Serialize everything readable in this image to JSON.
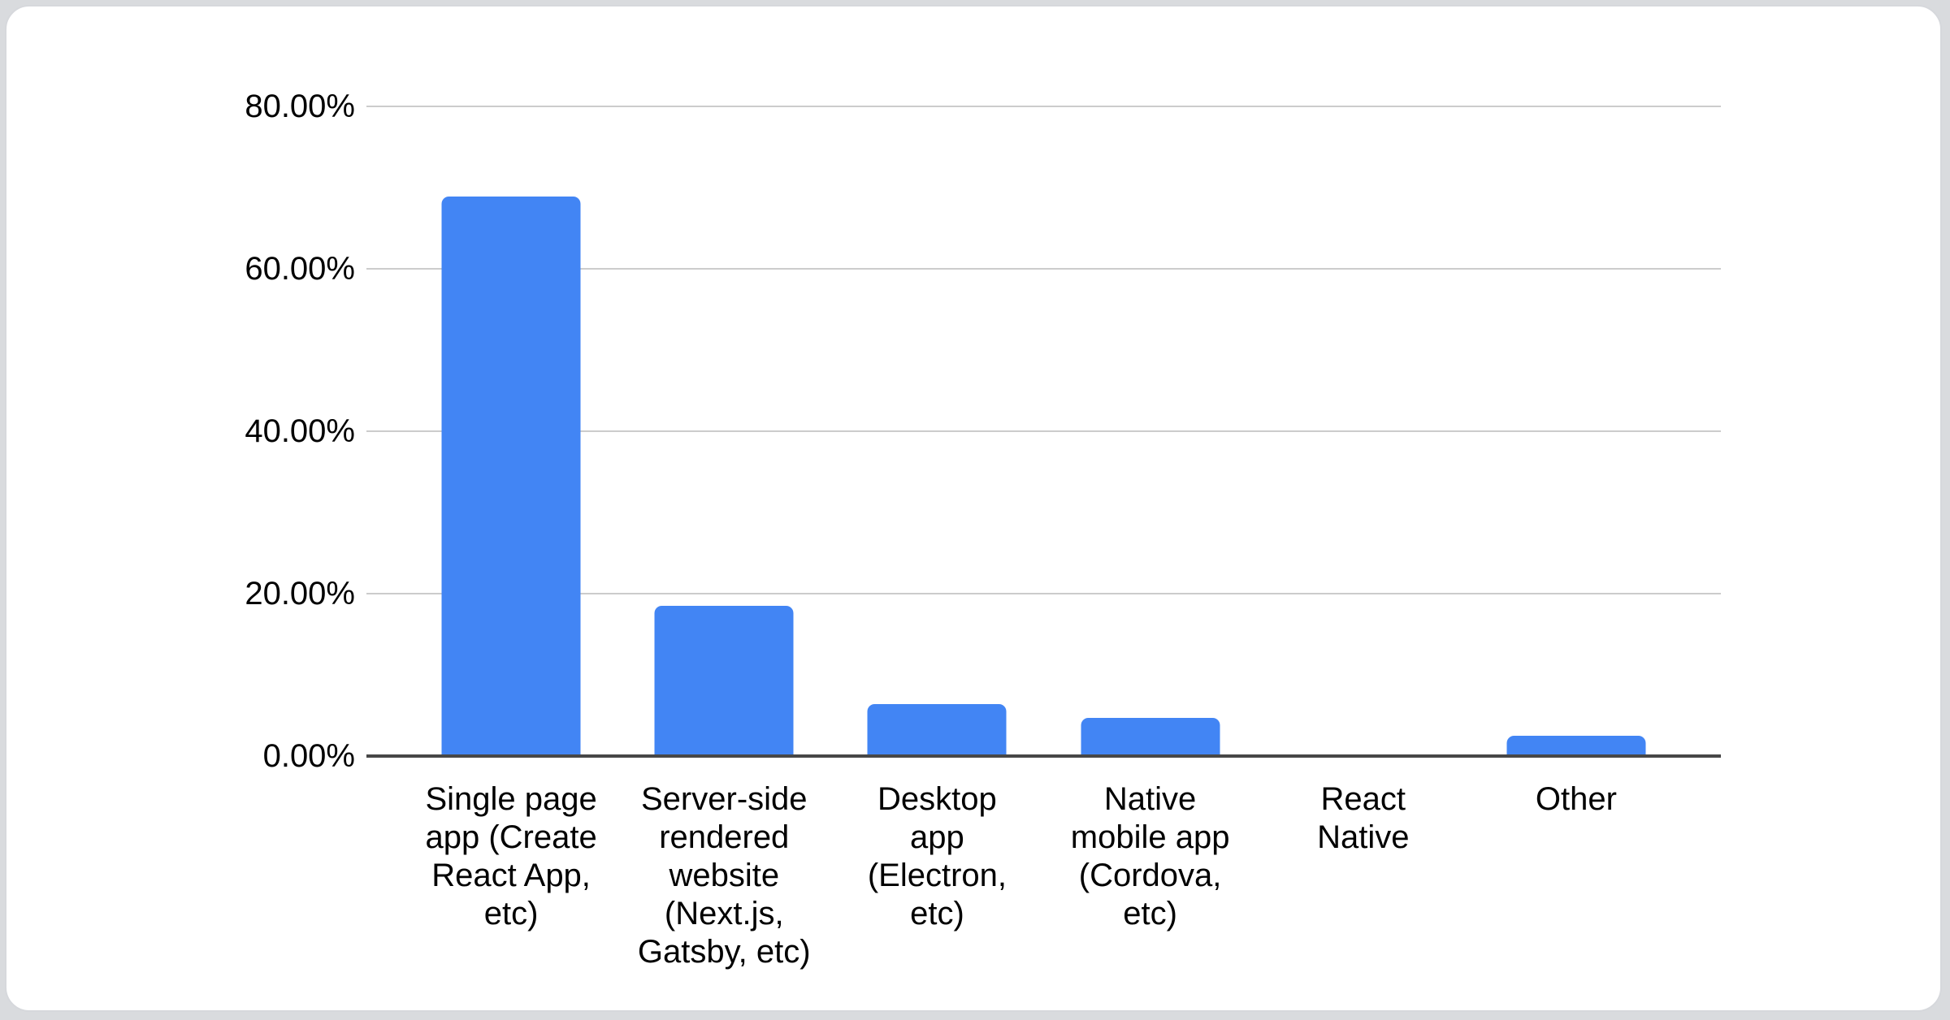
{
  "chart_data": {
    "type": "bar",
    "title": "",
    "xlabel": "",
    "ylabel": "",
    "categories": [
      "Single page app (Create React App, etc)",
      "Server-side rendered website (Next.js, Gatsby, etc)",
      "Desktop app (Electron, etc)",
      "Native mobile app (Cordova, etc)",
      "React Native",
      "Other"
    ],
    "category_lines": [
      [
        "Single page",
        "app (Create",
        "React App,",
        "etc)"
      ],
      [
        "Server-side",
        "rendered",
        "website",
        "(Next.js,",
        "Gatsby, etc)"
      ],
      [
        "Desktop",
        "app",
        "(Electron,",
        "etc)"
      ],
      [
        "Native",
        "mobile app",
        "(Cordova,",
        "etc)"
      ],
      [
        "React",
        "Native"
      ],
      [
        "Other"
      ]
    ],
    "values": [
      68.9,
      18.5,
      6.4,
      4.7,
      0,
      2.5
    ],
    "value_unit": "%",
    "ylim": [
      0,
      80
    ],
    "ytick_values": [
      0,
      20,
      40,
      60,
      80
    ],
    "ytick_labels": [
      "0.00%",
      "20.00%",
      "40.00%",
      "60.00%",
      "80.00%"
    ],
    "grid": "horizontal",
    "legend": "none",
    "bar_color": "#4285f4",
    "gridline_color": "#cccccc",
    "baseline_color": "#474747",
    "text_color": "#000000"
  }
}
